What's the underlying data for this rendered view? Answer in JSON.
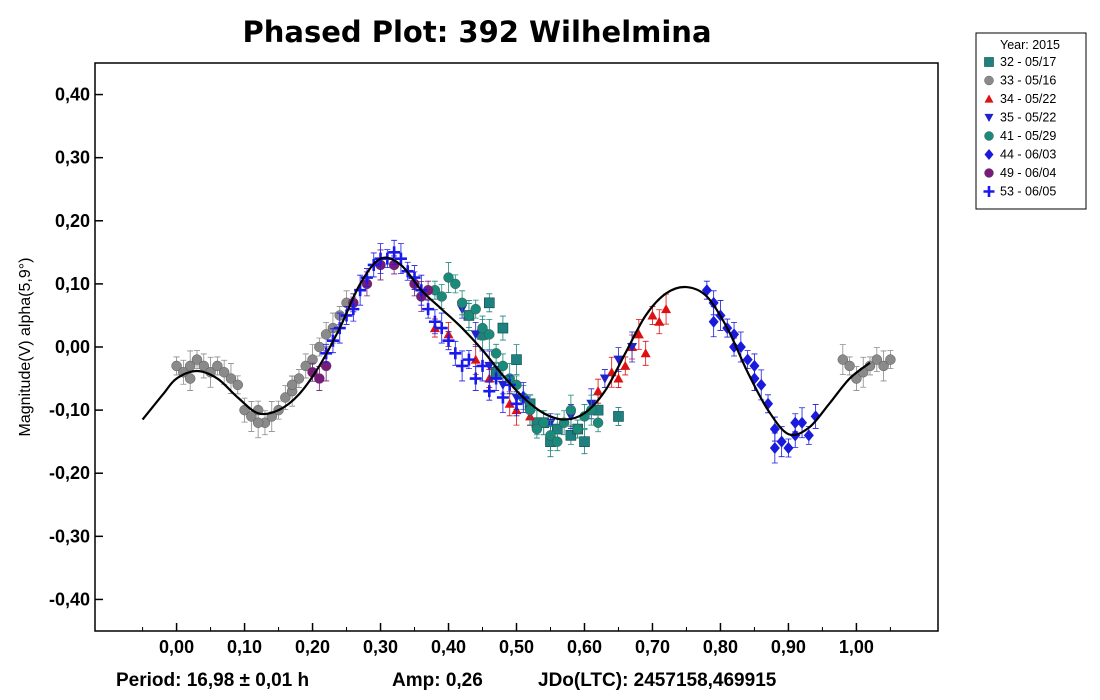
{
  "chart_data": {
    "type": "scatter",
    "title": "Phased Plot: 392 Wilhelmina",
    "ylabel": "Magnitude(V) alpha(5,9°)",
    "xlabel": "",
    "xlim": [
      -0.12,
      1.12
    ],
    "ylim": [
      -0.45,
      0.45
    ],
    "y_inverted_note": "",
    "x_ticks": [
      0.0,
      0.1,
      0.2,
      0.3,
      0.4,
      0.5,
      0.6,
      0.7,
      0.8,
      0.9,
      1.0
    ],
    "x_tick_labels": [
      "0,00",
      "0,10",
      "0,20",
      "0,30",
      "0,40",
      "0,50",
      "0,60",
      "0,70",
      "0,80",
      "0,90",
      "1,00"
    ],
    "y_ticks": [
      0.4,
      0.3,
      0.2,
      0.1,
      0.0,
      -0.1,
      -0.2,
      -0.3,
      -0.4
    ],
    "y_tick_labels": [
      "0,40",
      "0,30",
      "0,20",
      "0,10",
      "0,00",
      "-0,10",
      "-0,20",
      "-0,30",
      "-0,40"
    ],
    "grid": false,
    "legend_position": "top-right outside",
    "legend_header": "Year: 2015",
    "footer": {
      "period": "Period: 16,98 ± 0,01 h",
      "amp": "Amp: 0,26",
      "jdo": "JDo(LTC): 2457158,469915"
    },
    "fit_curve": {
      "x": [
        -0.05,
        -0.02,
        0.0,
        0.03,
        0.06,
        0.09,
        0.12,
        0.15,
        0.18,
        0.21,
        0.24,
        0.27,
        0.3,
        0.33,
        0.36,
        0.39,
        0.42,
        0.45,
        0.48,
        0.51,
        0.54,
        0.57,
        0.6,
        0.63,
        0.66,
        0.69,
        0.72,
        0.75,
        0.78,
        0.81,
        0.84,
        0.87,
        0.9,
        0.93,
        0.96,
        0.99,
        1.02
      ],
      "y": [
        -0.115,
        -0.075,
        -0.05,
        -0.038,
        -0.05,
        -0.08,
        -0.105,
        -0.1,
        -0.075,
        -0.03,
        0.03,
        0.1,
        0.14,
        0.13,
        0.09,
        0.06,
        0.03,
        -0.005,
        -0.045,
        -0.08,
        -0.105,
        -0.115,
        -0.105,
        -0.07,
        -0.01,
        0.05,
        0.085,
        0.095,
        0.08,
        0.03,
        -0.04,
        -0.1,
        -0.138,
        -0.128,
        -0.09,
        -0.05,
        -0.025
      ]
    },
    "series": [
      {
        "name": "32 - 05/17",
        "marker": "square",
        "color": "#1f8080",
        "x": [
          0.46,
          0.48,
          0.5,
          0.52,
          0.54,
          0.56,
          0.58,
          0.6,
          0.62,
          0.65,
          0.43,
          0.45,
          0.47,
          0.53,
          0.55,
          0.59
        ],
        "y": [
          0.07,
          0.03,
          -0.02,
          -0.09,
          -0.12,
          -0.13,
          -0.14,
          -0.15,
          -0.1,
          -0.11,
          0.05,
          0.02,
          -0.04,
          -0.12,
          -0.15,
          -0.13
        ]
      },
      {
        "name": "33 - 05/16",
        "marker": "circle",
        "color": "#8a8a8a",
        "x": [
          0.0,
          0.01,
          0.02,
          0.03,
          0.04,
          0.05,
          0.06,
          0.07,
          0.08,
          0.09,
          0.1,
          0.11,
          0.12,
          0.13,
          0.14,
          0.15,
          0.16,
          0.17,
          0.18,
          0.19,
          0.2,
          0.21,
          0.22,
          0.23,
          0.24,
          0.25,
          0.98,
          0.99,
          1.0,
          1.01,
          1.02,
          1.03,
          1.04,
          1.05,
          0.02,
          0.12,
          0.17
        ],
        "y": [
          -0.03,
          -0.04,
          -0.03,
          -0.02,
          -0.03,
          -0.04,
          -0.03,
          -0.04,
          -0.05,
          -0.06,
          -0.1,
          -0.11,
          -0.1,
          -0.12,
          -0.11,
          -0.1,
          -0.08,
          -0.07,
          -0.05,
          -0.03,
          -0.02,
          0.0,
          0.02,
          0.03,
          0.05,
          0.07,
          -0.02,
          -0.03,
          -0.05,
          -0.04,
          -0.03,
          -0.02,
          -0.03,
          -0.02,
          -0.05,
          -0.12,
          -0.06
        ]
      },
      {
        "name": "34 - 05/22",
        "marker": "triangle-up",
        "color": "#dd1111",
        "x": [
          0.38,
          0.4,
          0.44,
          0.46,
          0.49,
          0.5,
          0.52,
          0.62,
          0.64,
          0.66,
          0.67,
          0.68,
          0.7,
          0.71,
          0.72,
          0.65,
          0.69
        ],
        "y": [
          0.03,
          0.02,
          -0.02,
          -0.05,
          -0.09,
          -0.1,
          -0.11,
          -0.07,
          -0.04,
          -0.03,
          0.0,
          0.02,
          0.05,
          0.04,
          0.06,
          -0.05,
          -0.01
        ]
      },
      {
        "name": "35 - 05/22",
        "marker": "triangle-down",
        "color": "#2222cc",
        "x": [
          0.42,
          0.44,
          0.46,
          0.48,
          0.5,
          0.52,
          0.55,
          0.58,
          0.61,
          0.63,
          0.65,
          0.67
        ],
        "y": [
          0.06,
          0.02,
          -0.03,
          -0.06,
          -0.08,
          -0.1,
          -0.12,
          -0.11,
          -0.09,
          -0.05,
          -0.02,
          0.0
        ]
      },
      {
        "name": "41 - 05/29",
        "marker": "circle",
        "color": "#1a8a7a",
        "x": [
          0.38,
          0.39,
          0.4,
          0.41,
          0.42,
          0.43,
          0.44,
          0.45,
          0.46,
          0.47,
          0.48,
          0.49,
          0.5,
          0.51,
          0.52,
          0.53,
          0.54,
          0.55,
          0.56,
          0.57,
          0.58,
          0.59,
          0.6,
          0.61,
          0.62
        ],
        "y": [
          0.09,
          0.08,
          0.11,
          0.1,
          0.07,
          0.05,
          0.06,
          0.03,
          0.02,
          -0.01,
          -0.03,
          -0.05,
          -0.06,
          -0.08,
          -0.1,
          -0.13,
          -0.12,
          -0.14,
          -0.15,
          -0.12,
          -0.1,
          -0.13,
          -0.11,
          -0.1,
          -0.12
        ]
      },
      {
        "name": "44 - 06/03",
        "marker": "diamond",
        "color": "#1a1add",
        "x": [
          0.78,
          0.79,
          0.8,
          0.81,
          0.82,
          0.83,
          0.84,
          0.85,
          0.86,
          0.87,
          0.88,
          0.89,
          0.9,
          0.91,
          0.92,
          0.93,
          0.94,
          0.79,
          0.82,
          0.85,
          0.88,
          0.91
        ],
        "y": [
          0.09,
          0.07,
          0.05,
          0.03,
          0.02,
          0.0,
          -0.02,
          -0.03,
          -0.06,
          -0.09,
          -0.13,
          -0.15,
          -0.16,
          -0.14,
          -0.12,
          -0.14,
          -0.11,
          0.04,
          0.0,
          -0.05,
          -0.16,
          -0.12
        ]
      },
      {
        "name": "49 - 06/04",
        "marker": "circle",
        "color": "#7a1a7a",
        "x": [
          0.2,
          0.21,
          0.22,
          0.26,
          0.28,
          0.3,
          0.32,
          0.35,
          0.36,
          0.37
        ],
        "y": [
          -0.04,
          -0.05,
          -0.03,
          0.07,
          0.1,
          0.13,
          0.13,
          0.1,
          0.08,
          0.09
        ]
      },
      {
        "name": "53 - 06/05",
        "marker": "plus",
        "color": "#1a1aee",
        "x": [
          0.22,
          0.23,
          0.24,
          0.25,
          0.26,
          0.27,
          0.28,
          0.29,
          0.3,
          0.31,
          0.32,
          0.33,
          0.34,
          0.35,
          0.36,
          0.37,
          0.38,
          0.39,
          0.4,
          0.41,
          0.42,
          0.43,
          0.44,
          0.45,
          0.46,
          0.47,
          0.48,
          0.49,
          0.5,
          0.51
        ],
        "y": [
          -0.01,
          0.01,
          0.03,
          0.05,
          0.06,
          0.09,
          0.11,
          0.13,
          0.14,
          0.14,
          0.15,
          0.14,
          0.12,
          0.11,
          0.09,
          0.06,
          0.04,
          0.03,
          0.01,
          -0.01,
          -0.03,
          -0.02,
          -0.05,
          -0.03,
          -0.07,
          -0.05,
          -0.08,
          -0.06,
          -0.09,
          -0.08
        ]
      }
    ]
  }
}
